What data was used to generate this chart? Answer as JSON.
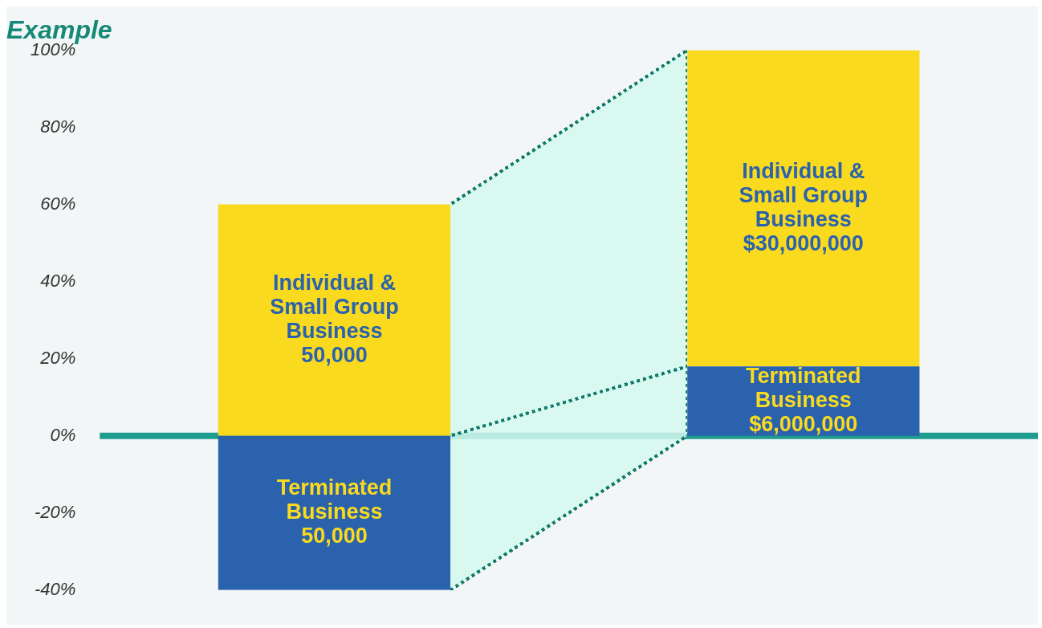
{
  "chart_data": {
    "type": "bar",
    "title": "Example",
    "categories": [
      null,
      null
    ],
    "stacked": true,
    "tick_labels": "y",
    "grid": false,
    "legend": false,
    "ylim": [
      -40,
      100
    ],
    "yticks": [
      {
        "value": -40,
        "label": "-40%"
      },
      {
        "value": -20,
        "label": "-20%"
      },
      {
        "value": 0,
        "label": "0%"
      },
      {
        "value": 20,
        "label": "20%"
      },
      {
        "value": 40,
        "label": "40%"
      },
      {
        "value": 60,
        "label": "60%"
      },
      {
        "value": 80,
        "label": "80%"
      },
      {
        "value": 100,
        "label": "100%"
      }
    ],
    "ref_lines": [
      {
        "axis": "y",
        "value": 0,
        "color": "#1e9c90"
      }
    ],
    "annotations": [
      "50,000",
      "$6,000,000",
      "50,000",
      "$30,000,000"
    ],
    "series": [
      {
        "name": "Terminated Business",
        "color": "#2a62ad",
        "values": [
          -40,
          18
        ]
      },
      {
        "name": "Individual & Small Group Business",
        "color": "#fada1f",
        "values": [
          60,
          82
        ]
      }
    ]
  }
}
